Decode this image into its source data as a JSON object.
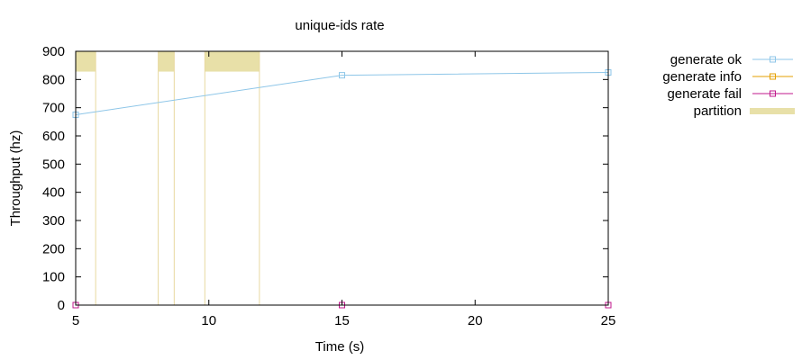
{
  "chart_data": {
    "type": "line",
    "title": "unique-ids rate",
    "xlabel": "Time (s)",
    "ylabel": "Throughput (hz)",
    "xlim": [
      5,
      25
    ],
    "ylim": [
      0,
      900
    ],
    "xticks": [
      5,
      10,
      15,
      20,
      25
    ],
    "yticks": [
      0,
      100,
      200,
      300,
      400,
      500,
      600,
      700,
      800,
      900
    ],
    "grid": false,
    "legend_position": "outside-right",
    "series": [
      {
        "name": "generate ok",
        "color": "#8ec6e8",
        "marker": "square",
        "points": [
          [
            5,
            675
          ],
          [
            15,
            815
          ],
          [
            25,
            825
          ]
        ]
      },
      {
        "name": "generate info",
        "color": "#e69f00",
        "marker": "square",
        "points": []
      },
      {
        "name": "generate fail",
        "color": "#c0188c",
        "marker": "square",
        "points": [
          [
            5,
            0
          ],
          [
            15,
            0
          ],
          [
            25,
            0
          ]
        ]
      }
    ],
    "partition": {
      "name": "partition",
      "color": "#e8e0a8",
      "line_color": "#e8d9a0",
      "band_ylim": [
        828,
        900
      ],
      "intervals": [
        [
          5.0,
          5.75
        ],
        [
          8.1,
          8.7
        ],
        [
          9.85,
          11.9
        ]
      ]
    }
  }
}
